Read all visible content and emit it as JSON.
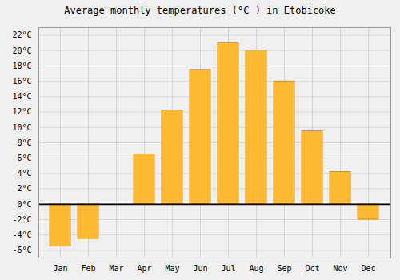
{
  "chart_data": {
    "type": "bar",
    "title": "Average monthly temperatures (°C ) in Etobicoke",
    "categories": [
      "Jan",
      "Feb",
      "Mar",
      "Apr",
      "May",
      "Jun",
      "Jul",
      "Aug",
      "Sep",
      "Oct",
      "Nov",
      "Dec"
    ],
    "values": [
      -5.5,
      -4.5,
      0.0,
      6.5,
      12.2,
      17.5,
      21.0,
      20.0,
      16.0,
      9.5,
      4.2,
      -2.0
    ],
    "color": "#FDB931",
    "ylim": [
      -7,
      23
    ],
    "yticks": [
      {
        "value": -6,
        "label": "-6°C"
      },
      {
        "value": -4,
        "label": "-4°C"
      },
      {
        "value": -2,
        "label": "-2°C"
      },
      {
        "value": 0,
        "label": "0°C"
      },
      {
        "value": 2,
        "label": "2°C"
      },
      {
        "value": 4,
        "label": "4°C"
      },
      {
        "value": 6,
        "label": "6°C"
      },
      {
        "value": 8,
        "label": "8°C"
      },
      {
        "value": 10,
        "label": "10°C"
      },
      {
        "value": 12,
        "label": "12°C"
      },
      {
        "value": 14,
        "label": "14°C"
      },
      {
        "value": 16,
        "label": "16°C"
      },
      {
        "value": 18,
        "label": "18°C"
      },
      {
        "value": 20,
        "label": "20°C"
      },
      {
        "value": 22,
        "label": "22°C"
      }
    ],
    "grid": true
  }
}
